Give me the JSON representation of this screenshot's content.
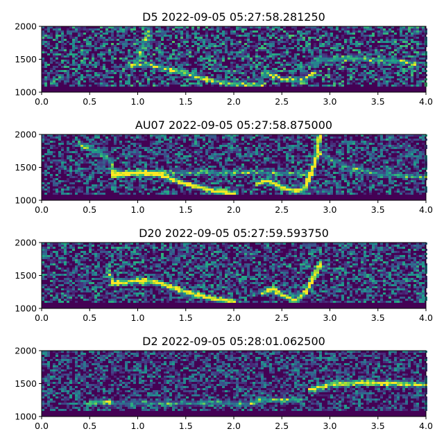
{
  "chart_data": [
    {
      "type": "heatmap",
      "title": "D5 2022-09-05 05:27:58.281250",
      "xlabel": "",
      "ylabel": "",
      "xlim": [
        0.0,
        4.0
      ],
      "ylim": [
        1000,
        2000
      ],
      "xticks": [
        "0.0",
        "0.5",
        "1.0",
        "1.5",
        "2.0",
        "2.5",
        "3.0",
        "3.5",
        "4.0"
      ],
      "yticks": [
        "1000",
        "1500",
        "2000"
      ],
      "colormap": "viridis",
      "noise": 0.45,
      "traces": [
        {
          "points": [
            [
              0.9,
              1400
            ],
            [
              1.1,
              1420
            ],
            [
              1.4,
              1330
            ],
            [
              1.7,
              1200
            ],
            [
              2.0,
              1120
            ],
            [
              2.3,
              1110
            ]
          ],
          "intensity": 0.6
        },
        {
          "points": [
            [
              1.0,
              1480
            ],
            [
              1.05,
              1700
            ],
            [
              1.12,
              1950
            ]
          ],
          "intensity": 0.5
        },
        {
          "points": [
            [
              2.3,
              1300
            ],
            [
              2.5,
              1200
            ],
            [
              2.7,
              1170
            ],
            [
              2.85,
              1300
            ]
          ],
          "intensity": 0.45
        },
        {
          "points": [
            [
              2.9,
              1490
            ],
            [
              3.2,
              1510
            ],
            [
              3.5,
              1490
            ],
            [
              3.9,
              1440
            ]
          ],
          "intensity": 0.5
        }
      ]
    },
    {
      "type": "heatmap",
      "title": "AU07 2022-09-05 05:27:58.875000",
      "xlabel": "",
      "ylabel": "",
      "xlim": [
        0.0,
        4.0
      ],
      "ylim": [
        1000,
        2000
      ],
      "xticks": [
        "0.0",
        "0.5",
        "1.0",
        "1.5",
        "2.0",
        "2.5",
        "3.0",
        "3.5",
        "4.0"
      ],
      "yticks": [
        "1000",
        "1500",
        "2000"
      ],
      "colormap": "viridis",
      "noise": 0.38,
      "traces": [
        {
          "points": [
            [
              0.4,
              1850
            ],
            [
              0.6,
              1720
            ],
            [
              0.72,
              1600
            ],
            [
              0.75,
              1370
            ]
          ],
          "intensity": 0.5
        },
        {
          "points": [
            [
              0.75,
              1380
            ],
            [
              1.0,
              1420
            ],
            [
              1.2,
              1400
            ],
            [
              1.5,
              1250
            ],
            [
              1.8,
              1140
            ],
            [
              2.0,
              1100
            ]
          ],
          "intensity": 1.0
        },
        {
          "points": [
            [
              0.75,
              1420
            ],
            [
              1.5,
              1420
            ],
            [
              2.2,
              1420
            ],
            [
              2.8,
              1400
            ]
          ],
          "intensity": 0.35
        },
        {
          "points": [
            [
              2.25,
              1250
            ],
            [
              2.35,
              1300
            ],
            [
              2.5,
              1200
            ],
            [
              2.65,
              1130
            ],
            [
              2.75,
              1200
            ],
            [
              2.85,
              1600
            ],
            [
              2.9,
              1980
            ]
          ],
          "intensity": 1.0
        },
        {
          "points": [
            [
              2.9,
              1700
            ],
            [
              3.2,
              1500
            ],
            [
              3.5,
              1400
            ],
            [
              4.0,
              1350
            ]
          ],
          "intensity": 0.35
        }
      ]
    },
    {
      "type": "heatmap",
      "title": "D20 2022-09-05 05:27:59.593750",
      "xlabel": "",
      "ylabel": "",
      "xlim": [
        0.0,
        4.0
      ],
      "ylim": [
        1000,
        2000
      ],
      "xticks": [
        "0.0",
        "0.5",
        "1.0",
        "1.5",
        "2.0",
        "2.5",
        "3.0",
        "3.5",
        "4.0"
      ],
      "yticks": [
        "1000",
        "1500",
        "2000"
      ],
      "colormap": "viridis",
      "noise": 0.4,
      "traces": [
        {
          "points": [
            [
              0.7,
              1560
            ],
            [
              0.74,
              1380
            ]
          ],
          "intensity": 0.45
        },
        {
          "points": [
            [
              0.74,
              1380
            ],
            [
              1.0,
              1420
            ],
            [
              1.2,
              1400
            ],
            [
              1.5,
              1250
            ],
            [
              1.8,
              1140
            ],
            [
              2.0,
              1100
            ]
          ],
          "intensity": 0.95
        },
        {
          "points": [
            [
              2.3,
              1230
            ],
            [
              2.4,
              1300
            ],
            [
              2.5,
              1200
            ],
            [
              2.65,
              1120
            ],
            [
              2.75,
              1250
            ],
            [
              2.9,
              1680
            ]
          ],
          "intensity": 0.95
        }
      ]
    },
    {
      "type": "heatmap",
      "title": "D2 2022-09-05 05:28:01.062500",
      "xlabel": "",
      "ylabel": "",
      "xlim": [
        0.0,
        4.0
      ],
      "ylim": [
        1000,
        2000
      ],
      "xticks": [
        "0.0",
        "0.5",
        "1.0",
        "1.5",
        "2.0",
        "2.5",
        "3.0",
        "3.5",
        "4.0"
      ],
      "yticks": [
        "1000",
        "1500",
        "2000"
      ],
      "colormap": "viridis",
      "noise": 0.35,
      "traces": [
        {
          "points": [
            [
              0.5,
              1180
            ],
            [
              0.55,
              1220
            ],
            [
              0.7,
              1220
            ]
          ],
          "intensity": 0.55
        },
        {
          "points": [
            [
              0.7,
              1200
            ],
            [
              1.5,
              1200
            ],
            [
              2.2,
              1200
            ]
          ],
          "intensity": 0.3
        },
        {
          "points": [
            [
              2.2,
              1200
            ],
            [
              2.3,
              1250
            ],
            [
              2.7,
              1250
            ]
          ],
          "intensity": 0.5
        },
        {
          "points": [
            [
              2.8,
              1400
            ],
            [
              3.0,
              1490
            ],
            [
              3.3,
              1510
            ],
            [
              3.7,
              1500
            ],
            [
              4.0,
              1480
            ]
          ],
          "intensity": 0.85
        }
      ]
    }
  ]
}
